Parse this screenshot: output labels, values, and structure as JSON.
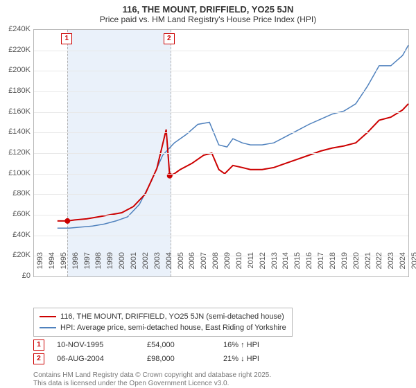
{
  "title": "116, THE MOUNT, DRIFFIELD, YO25 5JN",
  "subtitle": "Price paid vs. HM Land Registry's House Price Index (HPI)",
  "colors": {
    "series_property": "#cc0000",
    "series_hpi": "#4f81bd",
    "grid": "#e8e8e8",
    "axis": "#b8b8b8",
    "shade": "#eaf1fa",
    "marker_border": "#cc0000",
    "text": "#333333",
    "foot": "#777777"
  },
  "chart": {
    "type": "line",
    "x_years": [
      1993,
      1994,
      1995,
      1996,
      1997,
      1998,
      1999,
      2000,
      2001,
      2002,
      2003,
      2004,
      2005,
      2006,
      2007,
      2008,
      2009,
      2010,
      2011,
      2012,
      2013,
      2014,
      2015,
      2016,
      2017,
      2018,
      2019,
      2020,
      2021,
      2022,
      2023,
      2024,
      2025
    ],
    "y_ticks": [
      0,
      20000,
      40000,
      60000,
      80000,
      100000,
      120000,
      140000,
      160000,
      180000,
      200000,
      220000,
      240000
    ],
    "y_tick_labels": [
      "£0",
      "£20K",
      "£40K",
      "£60K",
      "£80K",
      "£100K",
      "£120K",
      "£140K",
      "£160K",
      "£180K",
      "£200K",
      "£220K",
      "£240K"
    ],
    "ylim": [
      0,
      240000
    ],
    "xlim": [
      1993,
      2025
    ],
    "shaded_range": [
      1995.86,
      2004.6
    ],
    "series": {
      "property": {
        "label": "116, THE MOUNT, DRIFFIELD, YO25 5JN (semi-detached house)",
        "line_width": 2,
        "points": [
          [
            1995.0,
            54000
          ],
          [
            1995.86,
            54000
          ],
          [
            1996.5,
            55000
          ],
          [
            1997.5,
            56000
          ],
          [
            1998.5,
            58000
          ],
          [
            1999.5,
            60000
          ],
          [
            2000.5,
            62000
          ],
          [
            2001.5,
            68000
          ],
          [
            2002.5,
            80000
          ],
          [
            2003.5,
            105000
          ],
          [
            2004.3,
            143000
          ],
          [
            2004.6,
            98000
          ],
          [
            2005.0,
            100000
          ],
          [
            2005.5,
            104000
          ],
          [
            2006.5,
            110000
          ],
          [
            2007.5,
            118000
          ],
          [
            2008.2,
            120000
          ],
          [
            2008.8,
            104000
          ],
          [
            2009.3,
            100000
          ],
          [
            2010.0,
            108000
          ],
          [
            2010.8,
            106000
          ],
          [
            2011.5,
            104000
          ],
          [
            2012.5,
            104000
          ],
          [
            2013.5,
            106000
          ],
          [
            2014.5,
            110000
          ],
          [
            2015.5,
            114000
          ],
          [
            2016.5,
            118000
          ],
          [
            2017.5,
            122000
          ],
          [
            2018.5,
            125000
          ],
          [
            2019.5,
            127000
          ],
          [
            2020.5,
            130000
          ],
          [
            2021.5,
            140000
          ],
          [
            2022.5,
            152000
          ],
          [
            2023.5,
            155000
          ],
          [
            2024.5,
            162000
          ],
          [
            2025.0,
            168000
          ]
        ]
      },
      "hpi": {
        "label": "HPI: Average price, semi-detached house, East Riding of Yorkshire",
        "line_width": 1.5,
        "points": [
          [
            1995.0,
            47000
          ],
          [
            1996.0,
            47000
          ],
          [
            1997.0,
            48000
          ],
          [
            1998.0,
            49000
          ],
          [
            1999.0,
            51000
          ],
          [
            2000.0,
            54000
          ],
          [
            2001.0,
            58000
          ],
          [
            2002.0,
            70000
          ],
          [
            2003.0,
            92000
          ],
          [
            2004.0,
            118000
          ],
          [
            2005.0,
            130000
          ],
          [
            2006.0,
            138000
          ],
          [
            2007.0,
            148000
          ],
          [
            2008.0,
            150000
          ],
          [
            2008.8,
            128000
          ],
          [
            2009.5,
            126000
          ],
          [
            2010.0,
            134000
          ],
          [
            2010.8,
            130000
          ],
          [
            2011.5,
            128000
          ],
          [
            2012.5,
            128000
          ],
          [
            2013.5,
            130000
          ],
          [
            2014.5,
            136000
          ],
          [
            2015.5,
            142000
          ],
          [
            2016.5,
            148000
          ],
          [
            2017.5,
            153000
          ],
          [
            2018.5,
            158000
          ],
          [
            2019.5,
            161000
          ],
          [
            2020.5,
            168000
          ],
          [
            2021.5,
            185000
          ],
          [
            2022.5,
            205000
          ],
          [
            2023.5,
            205000
          ],
          [
            2024.5,
            215000
          ],
          [
            2025.0,
            225000
          ]
        ]
      }
    },
    "sale_markers": [
      {
        "n": "1",
        "x": 1995.86,
        "y": 54000
      },
      {
        "n": "2",
        "x": 2004.6,
        "y": 98000
      }
    ]
  },
  "legend": {
    "rows": [
      {
        "color_key": "series_property",
        "label_key": "chart.series.property.label"
      },
      {
        "color_key": "series_hpi",
        "label_key": "chart.series.hpi.label"
      }
    ]
  },
  "sales_table": [
    {
      "n": "1",
      "date": "10-NOV-1995",
      "price": "£54,000",
      "delta": "16% ↑ HPI"
    },
    {
      "n": "2",
      "date": "06-AUG-2004",
      "price": "£98,000",
      "delta": "21% ↓ HPI"
    }
  ],
  "footnote_l1": "Contains HM Land Registry data © Crown copyright and database right 2025.",
  "footnote_l2": "This data is licensed under the Open Government Licence v3.0."
}
